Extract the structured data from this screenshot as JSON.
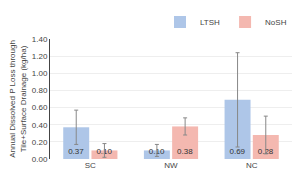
{
  "chart_data": {
    "type": "bar",
    "categories": [
      "SC",
      "NW",
      "NC"
    ],
    "series": [
      {
        "name": "LTSH",
        "color": "#aec6e8",
        "values": [
          0.37,
          0.1,
          0.69
        ],
        "errors": [
          0.2,
          0.07,
          0.55
        ],
        "value_labels": [
          "0.37",
          "0.10",
          "0.69"
        ]
      },
      {
        "name": "NoSH",
        "color": "#f4b8b0",
        "values": [
          0.1,
          0.38,
          0.28
        ],
        "errors": [
          0.08,
          0.1,
          0.22
        ],
        "value_labels": [
          "0.10",
          "0.38",
          "0.28"
        ]
      }
    ],
    "ylabel": "Annual Dissolved P Loss through\nTile+Surface Drainage (kg/ha)",
    "ylim": [
      0,
      1.4
    ],
    "yticks": [
      {
        "value": 0,
        "label": "0.00"
      },
      {
        "value": 0.2,
        "label": "0.20"
      },
      {
        "value": 0.4,
        "label": "0.40"
      },
      {
        "value": 0.6,
        "label": "0.60"
      },
      {
        "value": 0.8,
        "label": "0.80"
      },
      {
        "value": 1.0,
        "label": "1.00"
      },
      {
        "value": 1.2,
        "label": "1.20"
      },
      {
        "value": 1.4,
        "label": "1.40"
      }
    ],
    "grid": true,
    "legend": "upper right",
    "data_labels": true
  }
}
